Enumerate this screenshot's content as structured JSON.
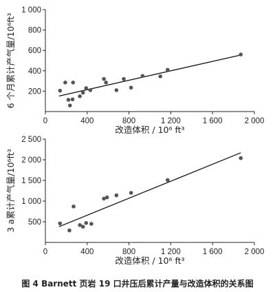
{
  "caption": "图 4   Barnett 页岩 19 口井压后累计产量与改造体积的关系图",
  "chart_data": [
    {
      "type": "scatter",
      "xlabel": "改造体积 / 10⁶ ft³",
      "ylabel": "6 个月累计产气量/10⁶ft³",
      "xlim": [
        0,
        2000
      ],
      "ylim": [
        0,
        1000
      ],
      "xticks": [
        0,
        400,
        800,
        1200,
        1600,
        2000
      ],
      "xtick_labels": [
        "0",
        "400",
        "800",
        "1 200",
        "1 600",
        "2 000"
      ],
      "yticks": [
        200,
        400,
        600,
        800,
        1000
      ],
      "ytick_labels": [
        "200",
        "400",
        "600",
        "800",
        "1 000"
      ],
      "trendline": {
        "x": [
          130,
          1870
        ],
        "y": [
          152,
          555
        ]
      },
      "points": [
        {
          "x": 140,
          "y": 205
        },
        {
          "x": 190,
          "y": 285
        },
        {
          "x": 220,
          "y": 115
        },
        {
          "x": 235,
          "y": 60
        },
        {
          "x": 260,
          "y": 120
        },
        {
          "x": 265,
          "y": 285
        },
        {
          "x": 330,
          "y": 150
        },
        {
          "x": 360,
          "y": 185
        },
        {
          "x": 390,
          "y": 230
        },
        {
          "x": 430,
          "y": 210
        },
        {
          "x": 560,
          "y": 320
        },
        {
          "x": 580,
          "y": 285
        },
        {
          "x": 680,
          "y": 210
        },
        {
          "x": 750,
          "y": 320
        },
        {
          "x": 820,
          "y": 235
        },
        {
          "x": 930,
          "y": 350
        },
        {
          "x": 1100,
          "y": 345
        },
        {
          "x": 1170,
          "y": 410
        },
        {
          "x": 1870,
          "y": 560
        }
      ]
    },
    {
      "type": "scatter",
      "xlabel": "改造体积 / 10⁶ ft³",
      "ylabel": "3 a累计产气量/10⁶ft³",
      "xlim": [
        0,
        2000
      ],
      "ylim": [
        0,
        2500
      ],
      "xticks": [
        0,
        400,
        800,
        1200,
        1600,
        2000
      ],
      "xtick_labels": [
        "0",
        "400",
        "800",
        "1 200",
        "1 600",
        "2 000"
      ],
      "yticks": [
        500,
        1000,
        1500,
        2000,
        2500
      ],
      "ytick_labels": [
        "500",
        "1 000",
        "1 500",
        "2 000",
        "2 500"
      ],
      "trendline": {
        "x": [
          130,
          1870
        ],
        "y": [
          380,
          2170
        ]
      },
      "points": [
        {
          "x": 140,
          "y": 460
        },
        {
          "x": 230,
          "y": 290
        },
        {
          "x": 270,
          "y": 870
        },
        {
          "x": 330,
          "y": 420
        },
        {
          "x": 360,
          "y": 380
        },
        {
          "x": 390,
          "y": 470
        },
        {
          "x": 440,
          "y": 450
        },
        {
          "x": 560,
          "y": 1060
        },
        {
          "x": 590,
          "y": 1090
        },
        {
          "x": 680,
          "y": 1140
        },
        {
          "x": 820,
          "y": 1200
        },
        {
          "x": 1170,
          "y": 1510
        },
        {
          "x": 1870,
          "y": 2040
        }
      ]
    }
  ]
}
